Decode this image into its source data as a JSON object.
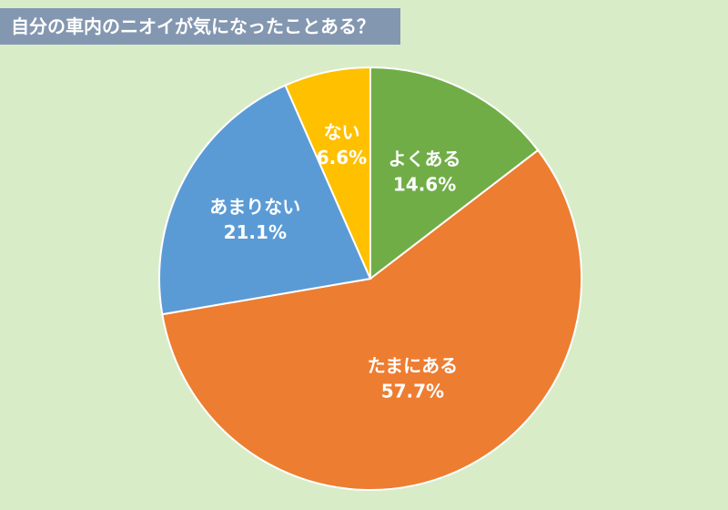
{
  "chart_data": {
    "type": "pie",
    "title": "自分の車内のニオイが気になったことある？",
    "categories": [
      "よくある",
      "たまにある",
      "あまりない",
      "ない"
    ],
    "values": [
      14.6,
      57.7,
      21.1,
      6.6
    ],
    "value_labels": [
      "14.6%",
      "57.7%",
      "21.1%",
      "6.6%"
    ],
    "colors": [
      "#70ad47",
      "#ed7d31",
      "#5b9bd5",
      "#ffc000"
    ],
    "start": "12 o'clock",
    "direction": "clockwise",
    "legend": "none"
  }
}
